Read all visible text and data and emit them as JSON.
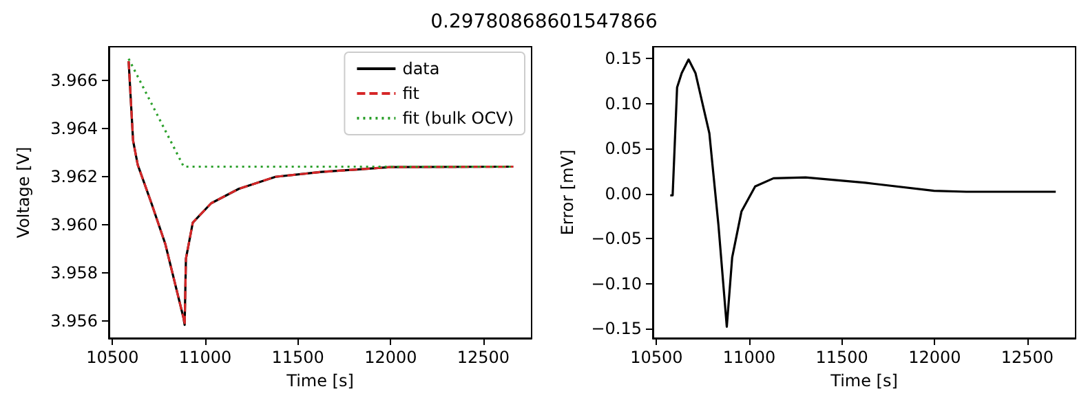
{
  "chart_data": [
    {
      "type": "line",
      "title": "0.29780868601547866",
      "xlabel": "Time [s]",
      "ylabel": "Voltage [V]",
      "xlim": [
        10480,
        12760
      ],
      "xticks": [
        10500,
        11000,
        11500,
        12000,
        12500
      ],
      "ylim": [
        3.9553,
        3.9674
      ],
      "yticks": [
        {
          "value": 3.956,
          "label": "3.956"
        },
        {
          "value": 3.958,
          "label": "3.958"
        },
        {
          "value": 3.96,
          "label": "3.960"
        },
        {
          "value": 3.962,
          "label": "3.962"
        },
        {
          "value": 3.964,
          "label": "3.964"
        },
        {
          "value": 3.966,
          "label": "3.966"
        }
      ],
      "legend": "top right",
      "grid": false,
      "marker": "none",
      "series": [
        {
          "name": "data",
          "color": "#000000",
          "line_style": "solid",
          "x": [
            10587,
            10611,
            10636,
            10710,
            10785,
            10884,
            10889,
            10896,
            10933,
            11032,
            11181,
            11379,
            11626,
            11997,
            12661
          ],
          "values": [
            3.9668,
            3.9635,
            3.9625,
            3.9609,
            3.9592,
            3.9561,
            3.95585,
            3.9586,
            3.9601,
            3.9609,
            3.9615,
            3.962,
            3.9622,
            3.9624,
            3.96242
          ]
        },
        {
          "name": "fit",
          "color": "#d62728",
          "line_style": "dashed",
          "x": [
            10587,
            10611,
            10636,
            10710,
            10785,
            10884,
            10889,
            10896,
            10933,
            11032,
            11181,
            11379,
            11626,
            11997,
            12661
          ],
          "values": [
            3.9668,
            3.9635,
            3.9625,
            3.9609,
            3.9592,
            3.9561,
            3.95585,
            3.9586,
            3.9601,
            3.9609,
            3.9615,
            3.962,
            3.9622,
            3.9624,
            3.96242
          ]
        },
        {
          "name": "fit (bulk OCV)",
          "color": "#2ca02c",
          "line_style": "dotted",
          "x": [
            10587,
            10884,
            12661
          ],
          "values": [
            3.9669,
            3.96242,
            3.96242
          ]
        }
      ]
    },
    {
      "type": "line",
      "xlabel": "Time [s]",
      "ylabel": "Error [mV]",
      "xlim": [
        10480,
        12760
      ],
      "xticks": [
        10500,
        11000,
        11500,
        12000,
        12500
      ],
      "ylim": [
        -0.1607,
        0.1632
      ],
      "yticks": [
        {
          "value": -0.15,
          "label": "−0.15"
        },
        {
          "value": -0.1,
          "label": "−0.10"
        },
        {
          "value": -0.05,
          "label": "−0.05"
        },
        {
          "value": 0,
          "label": "0.00"
        },
        {
          "value": 0.05,
          "label": "0.05"
        },
        {
          "value": 0.1,
          "label": "0.10"
        },
        {
          "value": 0.15,
          "label": "0.15"
        }
      ],
      "grid": false,
      "marker": "none",
      "series": [
        {
          "color": "#000000",
          "line_style": "solid",
          "x": [
            10574,
            10587,
            10611,
            10636,
            10673,
            10710,
            10785,
            10834,
            10879,
            10908,
            10958,
            11032,
            11131,
            11304,
            11626,
            11997,
            12171,
            12653
          ],
          "values": [
            -0.002,
            -0.002,
            0.118,
            0.134,
            0.149,
            0.134,
            0.067,
            -0.035,
            -0.148,
            -0.071,
            -0.02,
            0.008,
            0.017,
            0.018,
            0.012,
            0.003,
            0.002,
            0.002
          ]
        }
      ]
    }
  ]
}
